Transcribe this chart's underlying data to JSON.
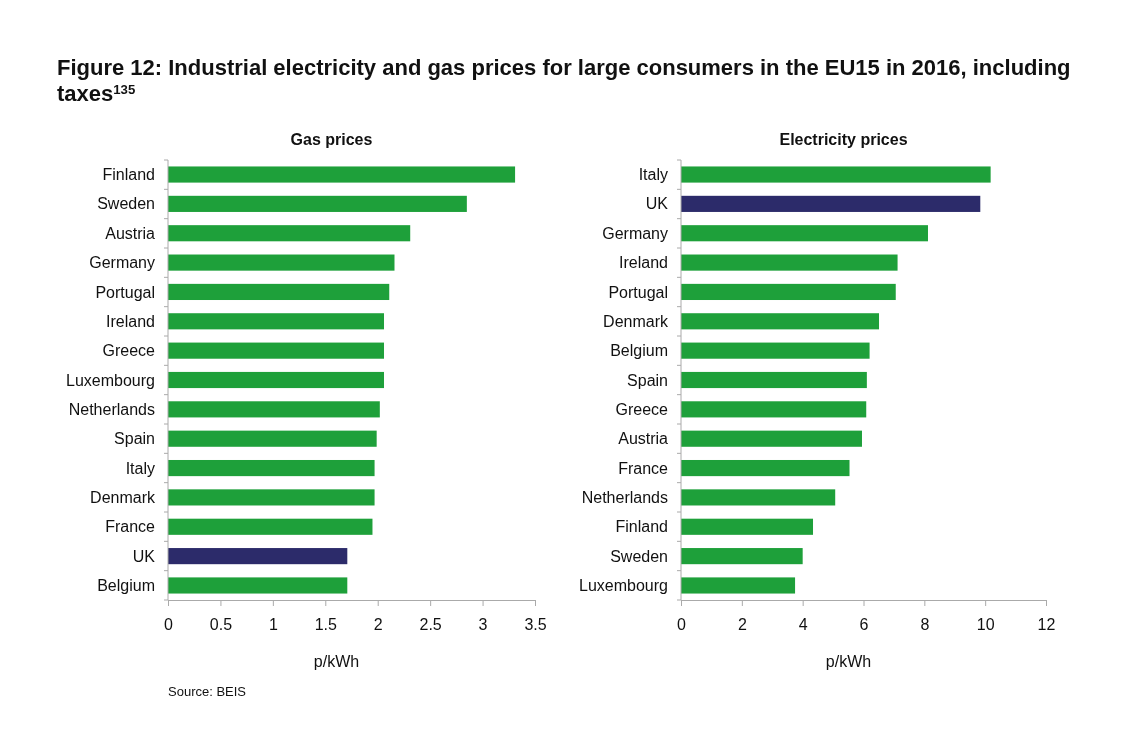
{
  "chart_data": [
    {
      "type": "bar",
      "orientation": "horizontal",
      "title": "Figure 12: Industrial electricity and gas prices for large consumers in the EU15 in 2016, including taxes$^{135}$",
      "subtitle": "Gas prices",
      "xlabel": "p/kWh",
      "annotations": [
        "Source: BEIS"
      ],
      "categories": [
        "Finland",
        "Sweden",
        "Austria",
        "Germany",
        "Portugal",
        "Ireland",
        "Greece",
        "Luxembourg",
        "Netherlands",
        "Spain",
        "Italy",
        "Denmark",
        "France",
        "UK",
        "Belgium"
      ],
      "values": [
        3.31,
        2.85,
        2.31,
        2.16,
        2.11,
        2.06,
        2.06,
        2.06,
        2.02,
        1.99,
        1.97,
        1.97,
        1.95,
        1.71,
        1.71
      ],
      "colors": [
        "#1ea03a",
        "#1ea03a",
        "#1ea03a",
        "#1ea03a",
        "#1ea03a",
        "#1ea03a",
        "#1ea03a",
        "#1ea03a",
        "#1ea03a",
        "#1ea03a",
        "#1ea03a",
        "#1ea03a",
        "#1ea03a",
        "#2c2b6a",
        "#1ea03a"
      ],
      "xlim": [
        0,
        3.5
      ],
      "xticks": [
        0,
        0.5,
        1,
        1.5,
        2,
        2.5,
        3,
        3.5
      ]
    },
    {
      "type": "bar",
      "orientation": "horizontal",
      "subtitle": "Electricity prices",
      "xlabel": "p/kWh",
      "categories": [
        "Italy",
        "UK",
        "Germany",
        "Ireland",
        "Portugal",
        "Denmark",
        "Belgium",
        "Spain",
        "Greece",
        "Austria",
        "France",
        "Netherlands",
        "Finland",
        "Sweden",
        "Luxembourg"
      ],
      "values": [
        10.18,
        9.84,
        8.12,
        7.12,
        7.06,
        6.51,
        6.2,
        6.11,
        6.09,
        5.95,
        5.54,
        5.07,
        4.34,
        4.0,
        3.75
      ],
      "colors": [
        "#1ea03a",
        "#2c2b6a",
        "#1ea03a",
        "#1ea03a",
        "#1ea03a",
        "#1ea03a",
        "#1ea03a",
        "#1ea03a",
        "#1ea03a",
        "#1ea03a",
        "#1ea03a",
        "#1ea03a",
        "#1ea03a",
        "#1ea03a",
        "#1ea03a"
      ],
      "xlim": [
        0,
        12
      ],
      "xticks": [
        0,
        2,
        4,
        6,
        8,
        10,
        12
      ]
    }
  ]
}
